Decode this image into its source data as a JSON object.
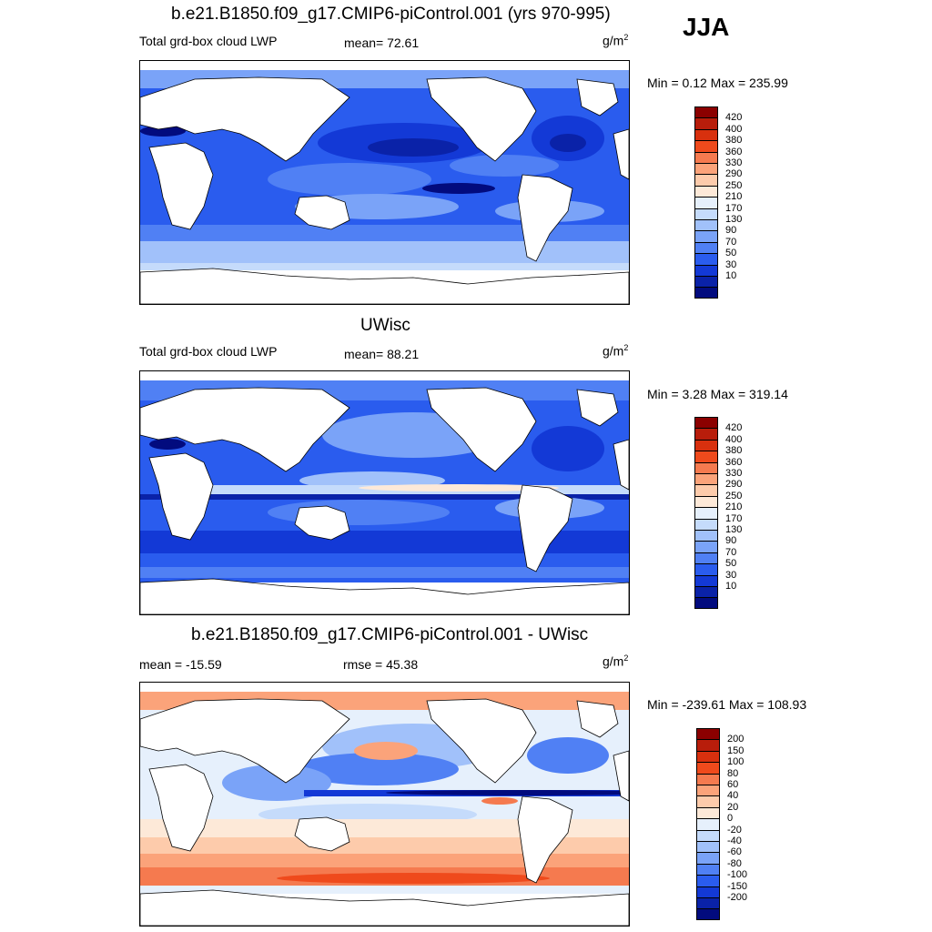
{
  "season": "JJA",
  "panels": [
    {
      "title": "b.e21.B1850.f09_g17.CMIP6-piControl.001 (yrs 970-995)",
      "left_label": "Total grd-box cloud LWP",
      "center_label": "mean=  72.61",
      "unit": "g/m",
      "unit_sup": "2",
      "minmax": "Min =   0.12 Max = 235.99",
      "colorbar": {
        "colors": [
          "#8b0000",
          "#b81d0b",
          "#d8300e",
          "#ef4a1c",
          "#f57a4f",
          "#fba37a",
          "#fdcbab",
          "#fde9d8",
          "#e6f0fc",
          "#c5dbfb",
          "#a1c1fa",
          "#7aa3f8",
          "#5080f4",
          "#2a5cee",
          "#1339d6",
          "#0a22a8",
          "#020b7e"
        ],
        "ticks": [
          "420",
          "400",
          "380",
          "360",
          "330",
          "290",
          "250",
          "210",
          "170",
          "130",
          "90",
          "70",
          "50",
          "30",
          "10"
        ]
      }
    },
    {
      "title": "UWisc",
      "left_label": "Total grd-box cloud LWP",
      "center_label": "mean=  88.21",
      "unit": "g/m",
      "unit_sup": "2",
      "minmax": "Min =   3.28 Max = 319.14",
      "colorbar": {
        "colors": [
          "#8b0000",
          "#b81d0b",
          "#d8300e",
          "#ef4a1c",
          "#f57a4f",
          "#fba37a",
          "#fdcbab",
          "#fde9d8",
          "#e6f0fc",
          "#c5dbfb",
          "#a1c1fa",
          "#7aa3f8",
          "#5080f4",
          "#2a5cee",
          "#1339d6",
          "#0a22a8",
          "#020b7e"
        ],
        "ticks": [
          "420",
          "400",
          "380",
          "360",
          "330",
          "290",
          "250",
          "210",
          "170",
          "130",
          "90",
          "70",
          "50",
          "30",
          "10"
        ]
      }
    },
    {
      "title": "b.e21.B1850.f09_g17.CMIP6-piControl.001 - UWisc",
      "left_label": "mean = -15.59",
      "center_label": "rmse =  45.38",
      "unit": "g/m",
      "unit_sup": "2",
      "minmax": "Min = -239.61 Max = 108.93",
      "colorbar": {
        "colors": [
          "#8b0000",
          "#b81d0b",
          "#d8300e",
          "#ef4a1c",
          "#f57a4f",
          "#fba37a",
          "#fdcbab",
          "#fde9d8",
          "#e6f0fc",
          "#c5dbfb",
          "#a1c1fa",
          "#7aa3f8",
          "#5080f4",
          "#2a5cee",
          "#1339d6",
          "#0a22a8",
          "#020b7e"
        ],
        "ticks": [
          "200",
          "150",
          "100",
          "80",
          "60",
          "40",
          "20",
          "0",
          "-20",
          "-40",
          "-60",
          "-80",
          "-100",
          "-150",
          "-200"
        ]
      }
    }
  ]
}
